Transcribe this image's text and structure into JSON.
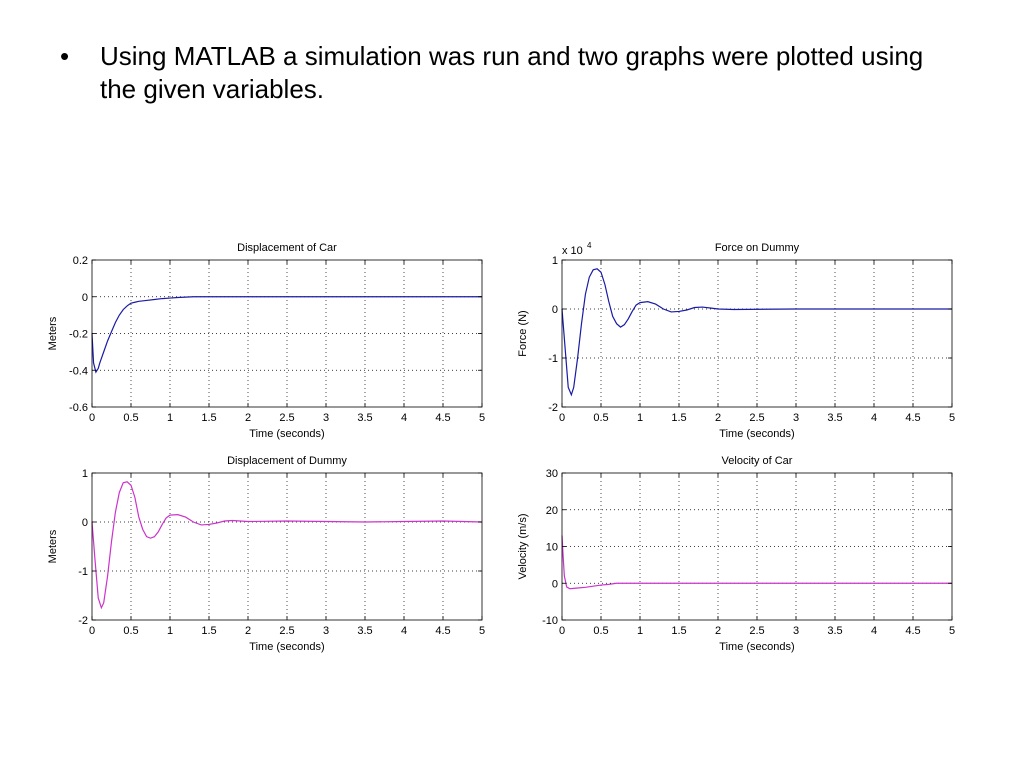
{
  "slide": {
    "bullet_symbol": "•",
    "text": "Using MATLAB a simulation was run and two graphs were plotted using the given variables."
  },
  "chart_data": [
    {
      "type": "line",
      "title": "Displacement of Car",
      "xlabel": "Time (seconds)",
      "ylabel": "Meters",
      "xlim": [
        0,
        5
      ],
      "ylim": [
        -0.6,
        0.2
      ],
      "xticks": [
        0,
        0.5,
        1,
        1.5,
        2,
        2.5,
        3,
        3.5,
        4,
        4.5,
        5
      ],
      "yticks": [
        -0.6,
        -0.4,
        -0.2,
        0,
        0.2
      ],
      "grid": true,
      "exponent_label": "",
      "series": [
        {
          "color": "#1a1aa6",
          "x": [
            0,
            0.02,
            0.05,
            0.08,
            0.1,
            0.15,
            0.2,
            0.25,
            0.3,
            0.35,
            0.4,
            0.45,
            0.5,
            0.55,
            0.6,
            0.7,
            0.8,
            0.9,
            1.0,
            1.1,
            1.2,
            1.3,
            1.5,
            2.0,
            3.0,
            4.0,
            5.0
          ],
          "y": [
            -0.2,
            -0.36,
            -0.41,
            -0.39,
            -0.36,
            -0.3,
            -0.24,
            -0.19,
            -0.14,
            -0.1,
            -0.07,
            -0.05,
            -0.035,
            -0.03,
            -0.025,
            -0.02,
            -0.015,
            -0.01,
            -0.007,
            -0.004,
            -0.002,
            0,
            0,
            0,
            0,
            0,
            0
          ]
        }
      ]
    },
    {
      "type": "line",
      "title": "Force on Dummy",
      "xlabel": "Time (seconds)",
      "ylabel": "Force (N)",
      "xlim": [
        0,
        5
      ],
      "ylim": [
        -2,
        1
      ],
      "xticks": [
        0,
        0.5,
        1,
        1.5,
        2,
        2.5,
        3,
        3.5,
        4,
        4.5,
        5
      ],
      "yticks": [
        -2,
        -1,
        0,
        1
      ],
      "grid": true,
      "exponent_label": "x 10",
      "exponent_power": "4",
      "series": [
        {
          "color": "#1a1aa6",
          "x": [
            0,
            0.04,
            0.08,
            0.12,
            0.15,
            0.2,
            0.25,
            0.3,
            0.35,
            0.4,
            0.45,
            0.5,
            0.55,
            0.6,
            0.65,
            0.7,
            0.75,
            0.8,
            0.85,
            0.9,
            0.95,
            1.0,
            1.1,
            1.2,
            1.3,
            1.4,
            1.5,
            1.6,
            1.7,
            1.8,
            1.9,
            2.0,
            2.2,
            3.0,
            4.0,
            5.0
          ],
          "y": [
            0,
            -0.8,
            -1.6,
            -1.75,
            -1.6,
            -1.0,
            -0.3,
            0.3,
            0.65,
            0.8,
            0.82,
            0.75,
            0.5,
            0.15,
            -0.15,
            -0.3,
            -0.37,
            -0.32,
            -0.2,
            -0.05,
            0.08,
            0.13,
            0.15,
            0.1,
            0.0,
            -0.06,
            -0.05,
            -0.02,
            0.03,
            0.04,
            0.02,
            0,
            -0.01,
            0,
            0,
            0
          ]
        }
      ]
    },
    {
      "type": "line",
      "title": "Displacement of Dummy",
      "xlabel": "Time (seconds)",
      "ylabel": "Meters",
      "xlim": [
        0,
        5
      ],
      "ylim": [
        -2,
        1
      ],
      "xticks": [
        0,
        0.5,
        1,
        1.5,
        2,
        2.5,
        3,
        3.5,
        4,
        4.5,
        5
      ],
      "yticks": [
        -2,
        -1,
        0,
        1
      ],
      "grid": true,
      "exponent_label": "",
      "series": [
        {
          "color": "#cc33cc",
          "x": [
            0,
            0.04,
            0.08,
            0.12,
            0.15,
            0.2,
            0.25,
            0.3,
            0.35,
            0.4,
            0.45,
            0.5,
            0.55,
            0.6,
            0.65,
            0.7,
            0.75,
            0.8,
            0.85,
            0.9,
            0.95,
            1.0,
            1.1,
            1.2,
            1.3,
            1.4,
            1.5,
            1.6,
            1.7,
            1.8,
            1.9,
            2.0,
            2.5,
            3.0,
            3.5,
            4.0,
            4.5,
            5.0
          ],
          "y": [
            0,
            -0.8,
            -1.55,
            -1.75,
            -1.65,
            -1.1,
            -0.4,
            0.2,
            0.6,
            0.8,
            0.82,
            0.75,
            0.5,
            0.1,
            -0.15,
            -0.3,
            -0.33,
            -0.3,
            -0.2,
            -0.05,
            0.08,
            0.14,
            0.15,
            0.1,
            0.0,
            -0.06,
            -0.05,
            -0.02,
            0.02,
            0.03,
            0.02,
            0.01,
            0.02,
            0.01,
            0.0,
            0.01,
            0.02,
            0.0
          ]
        }
      ]
    },
    {
      "type": "line",
      "title": "Velocity of Car",
      "xlabel": "Time (seconds)",
      "ylabel": "Velocity  (m/s)",
      "xlim": [
        0,
        5
      ],
      "ylim": [
        -10,
        30
      ],
      "xticks": [
        0,
        0.5,
        1,
        1.5,
        2,
        2.5,
        3,
        3.5,
        4,
        4.5,
        5
      ],
      "yticks": [
        -10,
        0,
        10,
        20,
        30
      ],
      "grid": true,
      "exponent_label": "",
      "series": [
        {
          "color": "#cc33cc",
          "x": [
            0,
            0.01,
            0.03,
            0.06,
            0.1,
            0.15,
            0.2,
            0.3,
            0.4,
            0.5,
            0.6,
            0.7,
            0.8,
            1.0,
            2.0,
            3.0,
            4.0,
            5.0
          ],
          "y": [
            13,
            9,
            2,
            -1,
            -1.5,
            -1.4,
            -1.3,
            -1.1,
            -0.8,
            -0.5,
            -0.3,
            0,
            0,
            0,
            0,
            0,
            0,
            0
          ]
        }
      ]
    }
  ]
}
